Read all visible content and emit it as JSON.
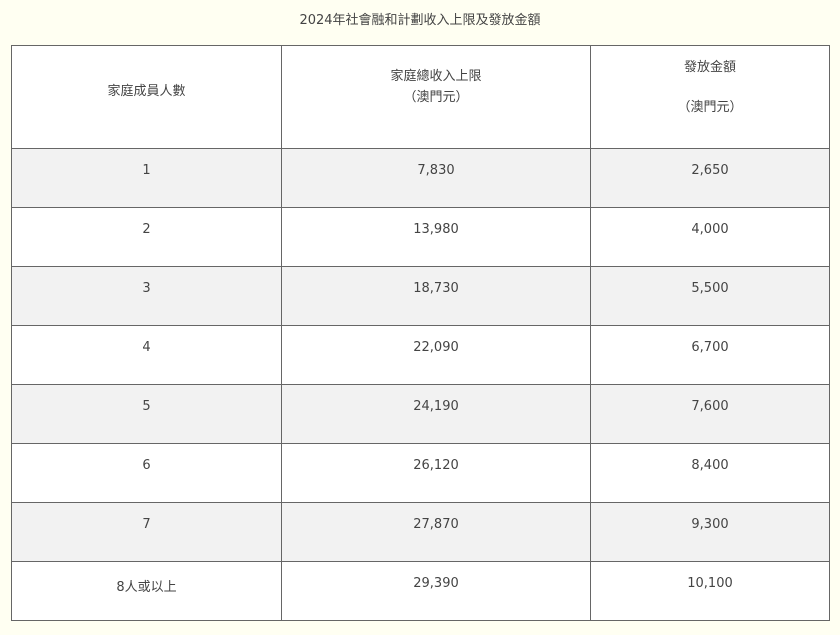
{
  "title": "2024年社會融和計劃收入上限及發放金額",
  "headers": {
    "members": "家庭成員人數",
    "income_limit": "家庭總收入上限",
    "income_unit": "（澳門元）",
    "amount": "發放金額",
    "amount_unit": "（澳門元）"
  },
  "rows": [
    {
      "members": "1",
      "income_limit": "7,830",
      "amount": "2,650"
    },
    {
      "members": "2",
      "income_limit": "13,980",
      "amount": "4,000"
    },
    {
      "members": "3",
      "income_limit": "18,730",
      "amount": "5,500"
    },
    {
      "members": "4",
      "income_limit": "22,090",
      "amount": "6,700"
    },
    {
      "members": "5",
      "income_limit": "24,190",
      "amount": "7,600"
    },
    {
      "members": "6",
      "income_limit": "26,120",
      "amount": "8,400"
    },
    {
      "members": "7",
      "income_limit": "27,870",
      "amount": "9,300"
    },
    {
      "members": "8人或以上",
      "income_limit": "29,390",
      "amount": "10,100"
    }
  ],
  "colors": {
    "background": "#fffff2",
    "stripe": "#f2f2f2",
    "border": "#666666"
  }
}
